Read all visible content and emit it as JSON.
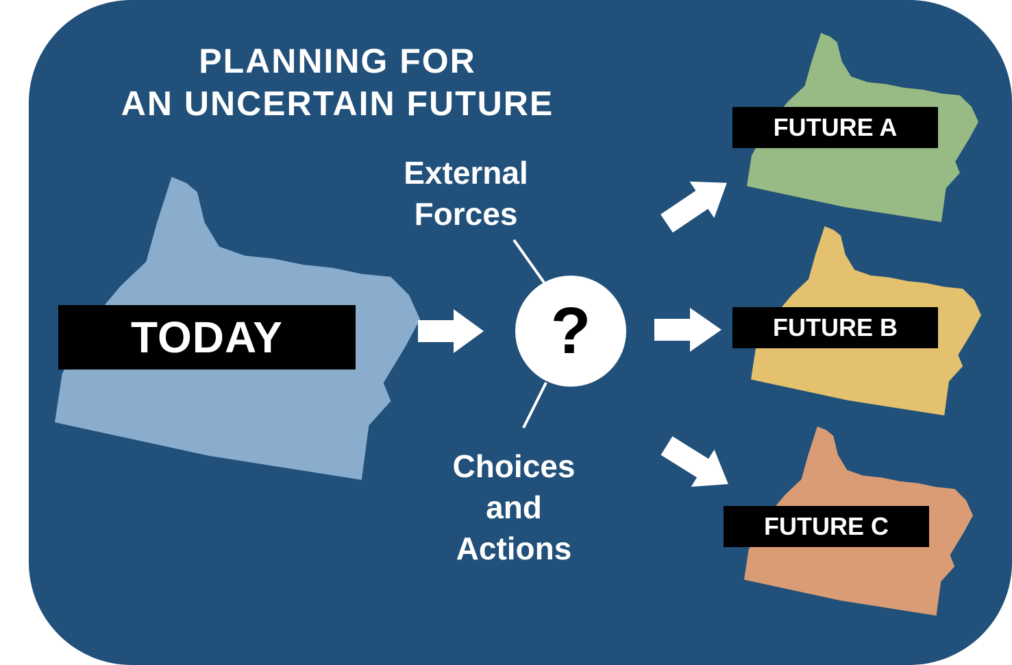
{
  "title": {
    "line1": "PLANNING FOR",
    "line2": "AN UNCERTAIN FUTURE"
  },
  "today": {
    "label": "TODAY",
    "color": "#8aadcd"
  },
  "center": {
    "symbol": "?",
    "top_caption": [
      "External",
      "Forces"
    ],
    "bottom_caption": [
      "Choices",
      "and",
      "Actions"
    ]
  },
  "futures": [
    {
      "label": "FUTURE A",
      "color": "#98ba84"
    },
    {
      "label": "FUTURE B",
      "color": "#e3c16e"
    },
    {
      "label": "FUTURE C",
      "color": "#d99c74"
    }
  ],
  "colors": {
    "background": "#21507a",
    "arrow": "#ffffff",
    "label_box": "#000000"
  },
  "icons": [
    "oregon-state-shape",
    "right-arrow",
    "question-circle"
  ]
}
